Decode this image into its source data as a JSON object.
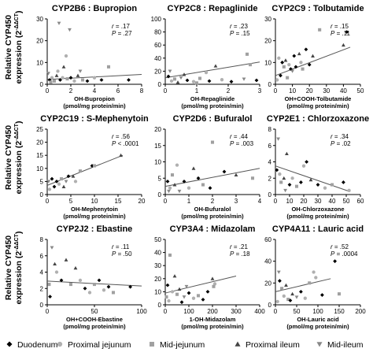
{
  "row_ylabels": [
    {
      "line1": "Relative CYP450",
      "line2": "expression (2",
      "sup": "-ΔΔCT",
      "close": ")"
    },
    {
      "line1": "Relative CYP450",
      "line2": "expression (2",
      "sup": "-ΔΔCT",
      "close": ")"
    },
    {
      "line1": "Relative CYP450",
      "line2": "expression (2",
      "sup": "-ΔΔCT",
      "close": ")"
    }
  ],
  "legend": [
    {
      "label": "Duodenum",
      "marker": "diamond",
      "color": "#000000"
    },
    {
      "label": "Proximal jejunum",
      "marker": "circle",
      "color": "#b0b0b0"
    },
    {
      "label": "Mid-jejunum",
      "marker": "square",
      "color": "#a0a0a0"
    },
    {
      "label": "Proximal ileum",
      "marker": "triangle",
      "color": "#444444"
    },
    {
      "label": "Mid-ileum",
      "marker": "triangle-down",
      "color": "#888888"
    }
  ],
  "chart_data": [
    {
      "type": "scatter",
      "title": "CYP2B6 : Bupropion",
      "xlabel": [
        "OH-Bupropion",
        "(pmol/mg protein/min)"
      ],
      "xlim": [
        0,
        8
      ],
      "xticks": [
        0,
        2,
        4,
        6,
        8
      ],
      "ylim": [
        0,
        30
      ],
      "yticks": [
        0,
        10,
        20,
        30
      ],
      "stats": {
        "r": ".17",
        "p": ".27",
        "p_op": "="
      },
      "trendline": [
        [
          0,
          2.2
        ],
        [
          8,
          4.5
        ]
      ],
      "points": [
        {
          "x": 1.0,
          "y": 28,
          "s": 4
        },
        {
          "x": 1.9,
          "y": 25,
          "s": 4
        },
        {
          "x": 1.6,
          "y": 13,
          "s": 1
        },
        {
          "x": 1.4,
          "y": 8,
          "s": 3
        },
        {
          "x": 5.2,
          "y": 8,
          "s": 2
        },
        {
          "x": 0.2,
          "y": 2,
          "s": 0
        },
        {
          "x": 0.4,
          "y": 3,
          "s": 1
        },
        {
          "x": 0.6,
          "y": 1.5,
          "s": 2
        },
        {
          "x": 0.8,
          "y": 4,
          "s": 3
        },
        {
          "x": 1.1,
          "y": 2,
          "s": 0
        },
        {
          "x": 1.3,
          "y": 3,
          "s": 1
        },
        {
          "x": 1.7,
          "y": 2.5,
          "s": 2
        },
        {
          "x": 2.0,
          "y": 3,
          "s": 0
        },
        {
          "x": 2.3,
          "y": 1.5,
          "s": 1
        },
        {
          "x": 2.6,
          "y": 4,
          "s": 3
        },
        {
          "x": 3.0,
          "y": 2,
          "s": 2
        },
        {
          "x": 3.4,
          "y": 1.5,
          "s": 0
        },
        {
          "x": 4.0,
          "y": 3,
          "s": 1
        },
        {
          "x": 4.6,
          "y": 2,
          "s": 0
        },
        {
          "x": 6.9,
          "y": 2,
          "s": 0
        },
        {
          "x": 0.1,
          "y": 5,
          "s": 4
        },
        {
          "x": 0.3,
          "y": 1,
          "s": 2
        },
        {
          "x": 0.9,
          "y": 6,
          "s": 1
        },
        {
          "x": 2.8,
          "y": 6,
          "s": 4
        }
      ]
    },
    {
      "type": "scatter",
      "title": "CYP2C8 : Repaglinide",
      "xlabel": [
        "OH-Repaglinide",
        "(pmol/mg protein/min)"
      ],
      "xlim": [
        0,
        3
      ],
      "xticks": [
        0,
        1,
        2,
        3
      ],
      "ylim": [
        0,
        100
      ],
      "yticks": [
        0,
        20,
        40,
        60,
        80,
        100
      ],
      "stats": {
        "r": ".23",
        "p": ".15",
        "p_op": "="
      },
      "trendline": [
        [
          0,
          10
        ],
        [
          3,
          34
        ]
      ],
      "points": [
        {
          "x": 2.6,
          "y": 46,
          "s": 2
        },
        {
          "x": 2.7,
          "y": 30,
          "s": 2
        },
        {
          "x": 1.6,
          "y": 28,
          "s": 3
        },
        {
          "x": 1.3,
          "y": 18,
          "s": 1
        },
        {
          "x": 0.1,
          "y": 12,
          "s": 0
        },
        {
          "x": 0.2,
          "y": 5,
          "s": 1
        },
        {
          "x": 0.3,
          "y": 8,
          "s": 2
        },
        {
          "x": 0.4,
          "y": 3,
          "s": 3
        },
        {
          "x": 0.5,
          "y": 10,
          "s": 4
        },
        {
          "x": 0.7,
          "y": 6,
          "s": 0
        },
        {
          "x": 0.9,
          "y": 4,
          "s": 1
        },
        {
          "x": 1.1,
          "y": 9,
          "s": 2
        },
        {
          "x": 1.4,
          "y": 5,
          "s": 0
        },
        {
          "x": 1.8,
          "y": 7,
          "s": 1
        },
        {
          "x": 2.1,
          "y": 4,
          "s": 0
        },
        {
          "x": 2.5,
          "y": 8,
          "s": 4
        },
        {
          "x": 2.9,
          "y": 6,
          "s": 0
        },
        {
          "x": 0.6,
          "y": 15,
          "s": 3
        },
        {
          "x": 1.0,
          "y": 2,
          "s": 2
        },
        {
          "x": 0.15,
          "y": 20,
          "s": 4
        }
      ]
    },
    {
      "type": "scatter",
      "title": "CYP2C9 : Tolbutamide",
      "xlabel": [
        "OH+COOH-Tolbutamide",
        "(pmol/mg protein/min)"
      ],
      "xlim": [
        0,
        50
      ],
      "xticks": [
        0,
        10,
        20,
        30,
        40,
        50
      ],
      "ylim": [
        0,
        30
      ],
      "yticks": [
        0,
        10,
        20,
        30
      ],
      "stats": {
        "r": ".15",
        "p": ".11",
        "p_op": "="
      },
      "trendline": [
        [
          0,
          4
        ],
        [
          44,
          17
        ]
      ],
      "points": [
        {
          "x": 26,
          "y": 25,
          "s": 2
        },
        {
          "x": 42,
          "y": 24,
          "s": 0
        },
        {
          "x": 40,
          "y": 18,
          "s": 3
        },
        {
          "x": 18,
          "y": 16,
          "s": 0
        },
        {
          "x": 14,
          "y": 14,
          "s": 3
        },
        {
          "x": 2,
          "y": 12,
          "s": 1
        },
        {
          "x": 4,
          "y": 10,
          "s": 0
        },
        {
          "x": 5,
          "y": 8,
          "s": 2
        },
        {
          "x": 6,
          "y": 11,
          "s": 3
        },
        {
          "x": 8,
          "y": 9,
          "s": 1
        },
        {
          "x": 9,
          "y": 7,
          "s": 0
        },
        {
          "x": 10,
          "y": 6,
          "s": 4
        },
        {
          "x": 12,
          "y": 8,
          "s": 0
        },
        {
          "x": 15,
          "y": 10,
          "s": 1
        },
        {
          "x": 16,
          "y": 7,
          "s": 2
        },
        {
          "x": 20,
          "y": 9,
          "s": 0
        },
        {
          "x": 3,
          "y": 4,
          "s": 0
        },
        {
          "x": 1,
          "y": 2,
          "s": 1
        },
        {
          "x": 7,
          "y": 3,
          "s": 2
        },
        {
          "x": 22,
          "y": 13,
          "s": 3
        },
        {
          "x": 11,
          "y": 13,
          "s": 0
        }
      ]
    },
    {
      "type": "scatter",
      "title": "CYP2C19 : S-Mephenytoin",
      "xlabel": [
        "OH-Mephenytoin",
        "(pmol/mg protein/min)"
      ],
      "xlim": [
        0,
        20
      ],
      "xticks": [
        0,
        5,
        10,
        15,
        20
      ],
      "ylim": [
        0,
        25
      ],
      "yticks": [
        0,
        5,
        10,
        15,
        20,
        25
      ],
      "stats": {
        "r": ".56",
        "p": ".0001",
        "p_op": "<"
      },
      "trendline": [
        [
          0,
          3.5
        ],
        [
          16,
          15
        ]
      ],
      "points": [
        {
          "x": 15.6,
          "y": 15,
          "s": 3
        },
        {
          "x": 9.5,
          "y": 11,
          "s": 0
        },
        {
          "x": 10,
          "y": 11,
          "s": 2
        },
        {
          "x": 7,
          "y": 9,
          "s": 2
        },
        {
          "x": 5.5,
          "y": 7,
          "s": 3
        },
        {
          "x": 1,
          "y": 6,
          "s": 0
        },
        {
          "x": 2,
          "y": 5,
          "s": 0
        },
        {
          "x": 2.5,
          "y": 4,
          "s": 1
        },
        {
          "x": 3,
          "y": 6,
          "s": 2
        },
        {
          "x": 3.5,
          "y": 3,
          "s": 3
        },
        {
          "x": 4,
          "y": 5,
          "s": 4
        },
        {
          "x": 0.5,
          "y": 2,
          "s": 1
        },
        {
          "x": 1.5,
          "y": 3,
          "s": 0
        },
        {
          "x": 6,
          "y": 5,
          "s": 1
        },
        {
          "x": 0.3,
          "y": 5,
          "s": 4
        },
        {
          "x": 4.5,
          "y": 7,
          "s": 0
        }
      ]
    },
    {
      "type": "scatter",
      "title": "CYP2D6 : Bufuralol",
      "xlabel": [
        "OH-Bufuralol",
        "(pmol/mg protein/min)"
      ],
      "xlim": [
        0,
        4
      ],
      "xticks": [
        0,
        1,
        2,
        3,
        4
      ],
      "ylim": [
        0,
        20
      ],
      "yticks": [
        0,
        5,
        10,
        15,
        20
      ],
      "stats": {
        "r": ".44",
        "p": ".003",
        "p_op": "="
      },
      "trendline": [
        [
          0,
          2.5
        ],
        [
          4,
          8
        ]
      ],
      "points": [
        {
          "x": 2.0,
          "y": 16,
          "s": 2
        },
        {
          "x": 0.5,
          "y": 9,
          "s": 1
        },
        {
          "x": 1.2,
          "y": 8,
          "s": 3
        },
        {
          "x": 2.5,
          "y": 7,
          "s": 0
        },
        {
          "x": 0.1,
          "y": 4,
          "s": 0
        },
        {
          "x": 0.2,
          "y": 2,
          "s": 1
        },
        {
          "x": 0.3,
          "y": 6,
          "s": 2
        },
        {
          "x": 0.4,
          "y": 3,
          "s": 3
        },
        {
          "x": 0.6,
          "y": 1,
          "s": 4
        },
        {
          "x": 0.8,
          "y": 4,
          "s": 0
        },
        {
          "x": 1.0,
          "y": 2,
          "s": 1
        },
        {
          "x": 1.4,
          "y": 5,
          "s": 0
        },
        {
          "x": 1.6,
          "y": 3,
          "s": 2
        },
        {
          "x": 1.9,
          "y": 2,
          "s": 0
        },
        {
          "x": 3.0,
          "y": 6,
          "s": 3
        },
        {
          "x": 3.7,
          "y": 5,
          "s": 2
        },
        {
          "x": 0.15,
          "y": 1,
          "s": 4
        }
      ]
    },
    {
      "type": "scatter",
      "title": "CYP2E1 : Chlorzoxazone",
      "xlabel": [
        "OH-Chlorzoxazone",
        "(pmol/mg protein/min)"
      ],
      "xlim": [
        0,
        60
      ],
      "xticks": [
        0,
        10,
        20,
        30,
        40,
        50,
        60
      ],
      "ylim": [
        0,
        8
      ],
      "yticks": [
        0,
        2,
        4,
        6,
        8
      ],
      "stats": {
        "r": ".34",
        "p": ".02",
        "p_op": "="
      },
      "trendline": [
        [
          0,
          3.5
        ],
        [
          52,
          0.4
        ]
      ],
      "points": [
        {
          "x": 2,
          "y": 6.8,
          "s": 4
        },
        {
          "x": 8,
          "y": 5,
          "s": 3
        },
        {
          "x": 22,
          "y": 4,
          "s": 0
        },
        {
          "x": 20,
          "y": 3.5,
          "s": 1
        },
        {
          "x": 1,
          "y": 3,
          "s": 0
        },
        {
          "x": 3,
          "y": 2.5,
          "s": 1
        },
        {
          "x": 4,
          "y": 1.5,
          "s": 2
        },
        {
          "x": 6,
          "y": 2,
          "s": 3
        },
        {
          "x": 10,
          "y": 1.2,
          "s": 0
        },
        {
          "x": 12,
          "y": 2,
          "s": 1
        },
        {
          "x": 15,
          "y": 1,
          "s": 2
        },
        {
          "x": 18,
          "y": 1.5,
          "s": 0
        },
        {
          "x": 25,
          "y": 1.8,
          "s": 3
        },
        {
          "x": 30,
          "y": 1.2,
          "s": 0
        },
        {
          "x": 35,
          "y": 0.8,
          "s": 1
        },
        {
          "x": 40,
          "y": 1.2,
          "s": 2
        },
        {
          "x": 48,
          "y": 1.5,
          "s": 0
        },
        {
          "x": 52,
          "y": 0.5,
          "s": 1
        },
        {
          "x": 7,
          "y": 0.5,
          "s": 4
        }
      ]
    },
    {
      "type": "scatter",
      "title": "CYP2J2 : Ebastine",
      "xlabel": [
        "OH+COOH-Ebastine",
        "(pmol/mg protein/min)"
      ],
      "xlim": [
        0,
        100
      ],
      "xticks": [
        0,
        50,
        100
      ],
      "ylim": [
        0,
        8
      ],
      "yticks": [
        0,
        2,
        4,
        6,
        8
      ],
      "stats": {
        "r": ".11",
        "p": ".50",
        "p_op": "="
      },
      "trendline": [
        [
          0,
          2.9
        ],
        [
          100,
          2.3
        ]
      ],
      "points": [
        {
          "x": 5,
          "y": 7,
          "s": 4
        },
        {
          "x": 8,
          "y": 5,
          "s": 3
        },
        {
          "x": 20,
          "y": 5.5,
          "s": 3
        },
        {
          "x": 30,
          "y": 4.5,
          "s": 3
        },
        {
          "x": 10,
          "y": 4,
          "s": 1
        },
        {
          "x": 15,
          "y": 3,
          "s": 0
        },
        {
          "x": 25,
          "y": 2.5,
          "s": 2
        },
        {
          "x": 35,
          "y": 3,
          "s": 1
        },
        {
          "x": 40,
          "y": 2,
          "s": 0
        },
        {
          "x": 45,
          "y": 1.5,
          "s": 1
        },
        {
          "x": 50,
          "y": 2.5,
          "s": 2
        },
        {
          "x": 55,
          "y": 3,
          "s": 0
        },
        {
          "x": 60,
          "y": 1.8,
          "s": 1
        },
        {
          "x": 65,
          "y": 2.2,
          "s": 0
        },
        {
          "x": 70,
          "y": 1.5,
          "s": 2
        },
        {
          "x": 88,
          "y": 2.2,
          "s": 0
        },
        {
          "x": 3,
          "y": 1,
          "s": 0
        },
        {
          "x": 2,
          "y": 2.5,
          "s": 2
        }
      ]
    },
    {
      "type": "scatter",
      "title": "CYP3A4 : Midazolam",
      "xlabel": [
        "1-OH-Midazolam",
        "(pmol/mg protein/min)"
      ],
      "xlim": [
        0,
        400
      ],
      "xticks": [
        0,
        100,
        200,
        300,
        400
      ],
      "ylim": [
        0,
        50
      ],
      "yticks": [
        0,
        10,
        20,
        30,
        40,
        50
      ],
      "stats": {
        "r": ".21",
        "p": ".18",
        "p_op": "="
      },
      "trendline": [
        [
          0,
          9
        ],
        [
          300,
          22
        ]
      ],
      "points": [
        {
          "x": 20,
          "y": 38,
          "s": 2
        },
        {
          "x": 40,
          "y": 22,
          "s": 3
        },
        {
          "x": 200,
          "y": 20,
          "s": 3
        },
        {
          "x": 210,
          "y": 16,
          "s": 1
        },
        {
          "x": 205,
          "y": 14,
          "s": 2
        },
        {
          "x": 10,
          "y": 15,
          "s": 0
        },
        {
          "x": 30,
          "y": 10,
          "s": 1
        },
        {
          "x": 50,
          "y": 8,
          "s": 2
        },
        {
          "x": 60,
          "y": 12,
          "s": 3
        },
        {
          "x": 80,
          "y": 6,
          "s": 4
        },
        {
          "x": 100,
          "y": 9,
          "s": 0
        },
        {
          "x": 120,
          "y": 5,
          "s": 1
        },
        {
          "x": 140,
          "y": 7,
          "s": 2
        },
        {
          "x": 160,
          "y": 4,
          "s": 0
        },
        {
          "x": 15,
          "y": 3,
          "s": 1
        },
        {
          "x": 70,
          "y": 2,
          "s": 0
        },
        {
          "x": 90,
          "y": 14,
          "s": 4
        },
        {
          "x": 180,
          "y": 10,
          "s": 0
        },
        {
          "x": 5,
          "y": 6,
          "s": 2
        }
      ]
    },
    {
      "type": "scatter",
      "title": "CYP4A11 : Lauric acid",
      "xlabel": [
        "OH-Lauric acid",
        "(pmol/mg protein/min)"
      ],
      "xlim": [
        0,
        200
      ],
      "xticks": [
        0,
        50,
        100,
        150,
        200
      ],
      "ylim": [
        0,
        60
      ],
      "yticks": [
        0,
        20,
        40,
        60
      ],
      "stats": {
        "r": ".52",
        "p": ".0004",
        "p_op": "="
      },
      "trendline": [
        [
          0,
          12
        ],
        [
          130,
          24
        ]
      ],
      "points": [
        {
          "x": 140,
          "y": 40,
          "s": 0
        },
        {
          "x": 90,
          "y": 30,
          "s": 1
        },
        {
          "x": 95,
          "y": 25,
          "s": 1
        },
        {
          "x": 80,
          "y": 20,
          "s": 2
        },
        {
          "x": 10,
          "y": 22,
          "s": 0
        },
        {
          "x": 20,
          "y": 8,
          "s": 1
        },
        {
          "x": 30,
          "y": 5,
          "s": 2
        },
        {
          "x": 40,
          "y": 10,
          "s": 3
        },
        {
          "x": 50,
          "y": 7,
          "s": 4
        },
        {
          "x": 60,
          "y": 12,
          "s": 0
        },
        {
          "x": 5,
          "y": 3,
          "s": 1
        },
        {
          "x": 15,
          "y": 15,
          "s": 2
        },
        {
          "x": 25,
          "y": 18,
          "s": 3
        },
        {
          "x": 35,
          "y": 4,
          "s": 0
        },
        {
          "x": 70,
          "y": 6,
          "s": 1
        },
        {
          "x": 110,
          "y": 9,
          "s": 0
        },
        {
          "x": 150,
          "y": 10,
          "s": 2
        },
        {
          "x": 8,
          "y": 30,
          "s": 4
        }
      ]
    }
  ]
}
